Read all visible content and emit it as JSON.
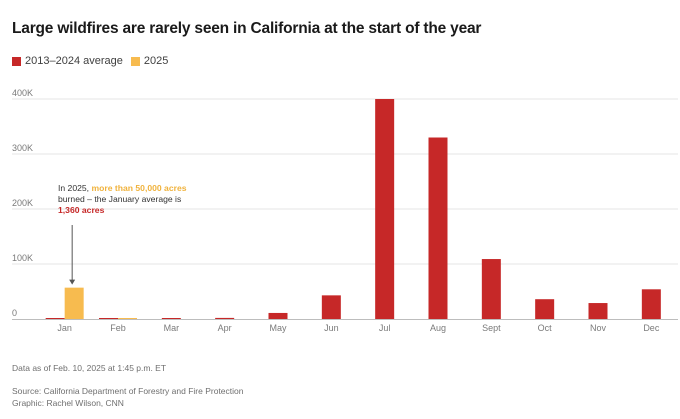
{
  "title": "Large wildfires are rarely seen in California at the start of the year",
  "colors": {
    "average": "#c62828",
    "year2025": "#f7bb4f",
    "grid": "#e6e6e6",
    "axis": "#bdbdbd"
  },
  "annotation": {
    "part1": "In 2025, ",
    "highlight1": "more than 50,000 acres",
    "part2": " burned – the January average is ",
    "highlight2": "1,360 acres"
  },
  "footer": {
    "data_note": "Data as of Feb. 10, 2025 at 1:45 p.m. ET",
    "source": "Source: California Department of Forestry and Fire Protection",
    "credit": "Graphic: Rachel Wilson, CNN"
  },
  "chart_data": {
    "type": "bar",
    "title": "Large wildfires are rarely seen in California at the start of the year",
    "xlabel": "",
    "ylabel": "",
    "categories": [
      "Jan",
      "Feb",
      "Mar",
      "Apr",
      "May",
      "Jun",
      "Jul",
      "Aug",
      "Sept",
      "Oct",
      "Nov",
      "Dec"
    ],
    "series": [
      {
        "name": "2013–2024 average",
        "values": [
          1360,
          900,
          300,
          2000,
          11000,
          43000,
          400000,
          330000,
          109000,
          36000,
          29000,
          54000
        ]
      },
      {
        "name": "2025",
        "values": [
          57000,
          300,
          null,
          null,
          null,
          null,
          null,
          null,
          null,
          null,
          null,
          null
        ]
      }
    ],
    "ylim": [
      0,
      400000
    ],
    "yticks": [
      0,
      100000,
      200000,
      300000,
      400000
    ],
    "ytick_labels": [
      "0",
      "100K",
      "200K",
      "300K",
      "400K"
    ],
    "grid": true,
    "legend": "top-left"
  }
}
